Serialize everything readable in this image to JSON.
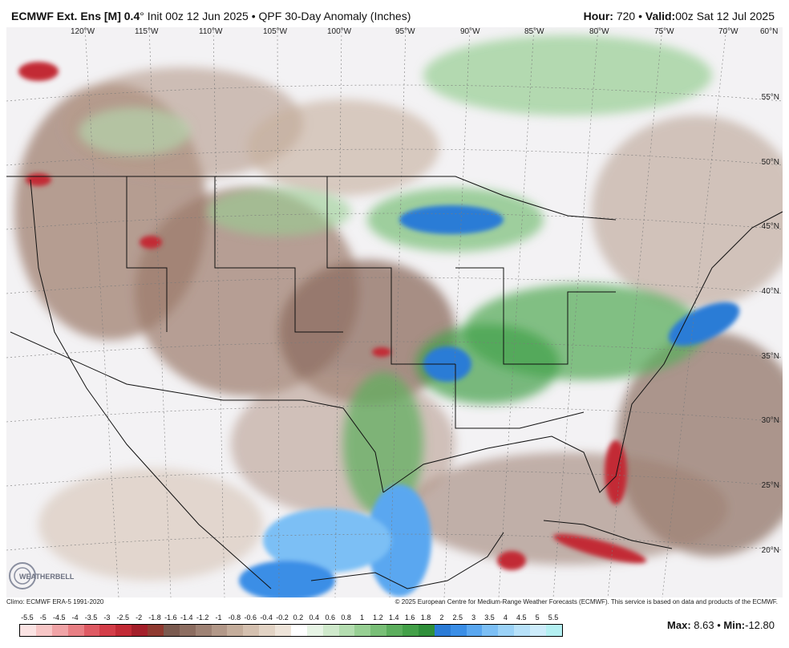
{
  "header": {
    "model": "ECMWF Ext. Ens [M] 0.4",
    "degree": "°",
    "init": "Init 00z 12 Jun 2025",
    "bullet": "•",
    "product": "QPF 30-Day Anomaly (Inches)",
    "hour_label": "Hour:",
    "hour_value": "720",
    "valid_label": "Valid:",
    "valid_value": "00z Sat 12 Jul 2025"
  },
  "longitudes": [
    "120°W",
    "115°W",
    "110°W",
    "105°W",
    "100°W",
    "95°W",
    "90°W",
    "85°W",
    "80°W",
    "75°W",
    "70°W",
    "60°N"
  ],
  "latitudes": [
    "55°N",
    "50°N",
    "45°N",
    "40°N",
    "35°N",
    "30°N",
    "25°N",
    "20°N"
  ],
  "footer": {
    "climo": "Climo: ECMWF ERA-5 1991-2020",
    "copyright": "© 2025 European Centre for Medium-Range Weather Forecasts (ECMWF). This service is based on data and products of the ECMWF."
  },
  "scale": {
    "ticks": [
      "-5.5",
      "-5",
      "-4.5",
      "-4",
      "-3.5",
      "-3",
      "-2.5",
      "-2",
      "-1.8",
      "-1.6",
      "-1.4",
      "-1.2",
      "-1",
      "-0.8",
      "-0.6",
      "-0.4",
      "-0.2",
      "0.2",
      "0.4",
      "0.6",
      "0.8",
      "1",
      "1.2",
      "1.4",
      "1.6",
      "1.8",
      "2",
      "2.5",
      "3",
      "3.5",
      "4",
      "4.5",
      "5",
      "5.5"
    ],
    "colors": [
      "#fbe3e3",
      "#f7c6c6",
      "#f0a3a6",
      "#e87f84",
      "#de5a63",
      "#d33d48",
      "#c22a35",
      "#a31f2a",
      "#8f3a30",
      "#7a5a4f",
      "#8c6d60",
      "#9e8274",
      "#b29888",
      "#c4ad9b",
      "#d4c0af",
      "#e2d3c4",
      "#eee4d9",
      "#ffffff",
      "#e7f4e5",
      "#cfe9cb",
      "#b4ddb0",
      "#97cf93",
      "#79bf77",
      "#5cae5d",
      "#43a048",
      "#2f8f3a",
      "#2b7bd6",
      "#3b8ee6",
      "#5aa7f0",
      "#7cbff5",
      "#9bd2f7",
      "#b7e1f9",
      "#cdecfb",
      "#b4f0f2"
    ]
  },
  "stats": {
    "max_label": "Max:",
    "max_value": "8.63",
    "min_label": "Min:",
    "min_value": "-12.80"
  },
  "logo_text": "WEATHERBELL"
}
